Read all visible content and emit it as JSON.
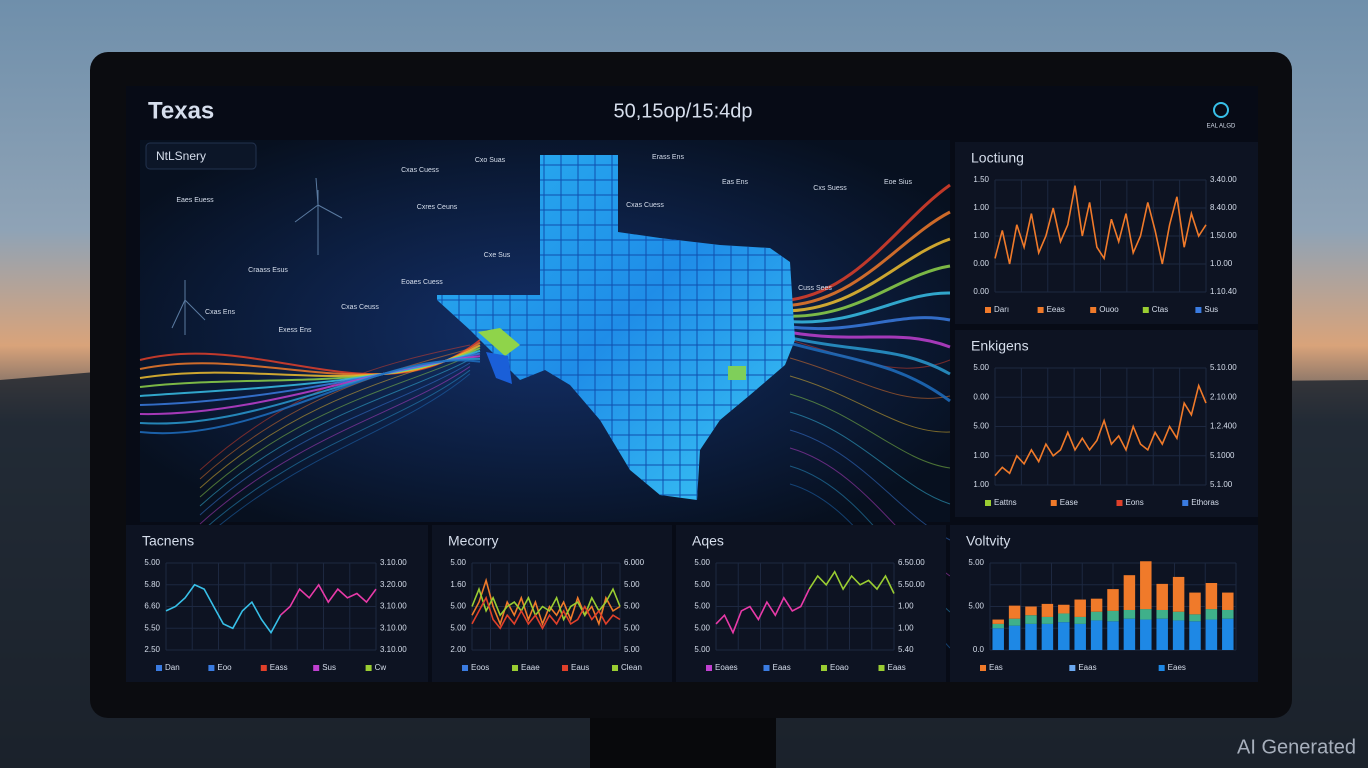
{
  "header": {
    "title": "Texas",
    "center": "50,15op/15:4dp",
    "logo": "EAL ALGD"
  },
  "watermark": "AI Generated",
  "map": {
    "title": "NtLSnery",
    "labels": [
      "Eaes Euess",
      "Cxo Suas",
      "Erass Ens",
      "Cxas Cuess",
      "Eas Ens",
      "Cxs Suess",
      "Eoe Sius",
      "Cxas Cuess",
      "Cxres Ceuns",
      "Craass Esus",
      "Cxe Sus",
      "Cxas Ceuss",
      "Eoaes Cuess",
      "Cxas Ens",
      "Exess Ens",
      "Cuss Sees"
    ]
  },
  "panels": [
    {
      "title": "Loctiung",
      "type": "line",
      "ylim": [
        0,
        1
      ],
      "left_labels": [
        "1.50",
        "1.00",
        "1.00",
        "0.00",
        "0.00"
      ],
      "right_labels": [
        "3.40.00",
        "8.40.00",
        "1.50.00",
        "1.0.00",
        "1.10.40"
      ],
      "legend": [
        {
          "name": "Darı",
          "color": "#f07a2a"
        },
        {
          "name": "Eeas",
          "color": "#f07a2a"
        },
        {
          "name": "Ouoo",
          "color": "#f07a2a"
        },
        {
          "name": "Ctas",
          "color": "#9acd32"
        },
        {
          "name": "Sus",
          "color": "#3a7be0"
        }
      ],
      "series": [
        {
          "color": "#f07a2a",
          "values": [
            0.3,
            0.55,
            0.25,
            0.6,
            0.4,
            0.7,
            0.35,
            0.5,
            0.75,
            0.45,
            0.6,
            0.95,
            0.5,
            0.8,
            0.4,
            0.3,
            0.65,
            0.45,
            0.7,
            0.35,
            0.5,
            0.8,
            0.55,
            0.25,
            0.6,
            0.85,
            0.4,
            0.7,
            0.5,
            0.6
          ]
        }
      ]
    },
    {
      "title": "Enkigens",
      "type": "line",
      "ylim": [
        0,
        1
      ],
      "left_labels": [
        "5.00",
        "0.00",
        "5.00",
        "1.00",
        "1.00"
      ],
      "right_labels": [
        "5.10.00",
        "2.10.00",
        "1.2.400",
        "5.1000",
        "5.1.00"
      ],
      "legend": [
        {
          "name": "Eattns",
          "color": "#9acd32"
        },
        {
          "name": "Ease",
          "color": "#f07a2a"
        },
        {
          "name": "Eons",
          "color": "#e0402a"
        },
        {
          "name": "Ethoras",
          "color": "#3a7be0"
        }
      ],
      "series": [
        {
          "color": "#f07a2a",
          "values": [
            0.08,
            0.15,
            0.1,
            0.25,
            0.18,
            0.3,
            0.2,
            0.35,
            0.25,
            0.3,
            0.45,
            0.3,
            0.4,
            0.3,
            0.38,
            0.55,
            0.35,
            0.42,
            0.3,
            0.5,
            0.35,
            0.3,
            0.45,
            0.35,
            0.5,
            0.4,
            0.7,
            0.6,
            0.85,
            0.7
          ]
        }
      ]
    },
    {
      "title": "Tacnens",
      "type": "line",
      "ylim": [
        0,
        1
      ],
      "left_labels": [
        "5.00",
        "5.80",
        "6.60",
        "5.50",
        "2.50"
      ],
      "right_labels": [
        "3.10.00",
        "3.20.00",
        "3.10.00",
        "3.10.00",
        "3.10.00"
      ],
      "legend": [
        {
          "name": "Dan",
          "color": "#3a7be0"
        },
        {
          "name": "Eoo",
          "color": "#3a7be0"
        },
        {
          "name": "Eass",
          "color": "#e0402a"
        },
        {
          "name": "Sus",
          "color": "#c040d0"
        },
        {
          "name": "Cw",
          "color": "#9acd32"
        }
      ],
      "series": [
        {
          "color": "#38c0e8",
          "values": [
            0.45,
            0.5,
            0.6,
            0.75,
            0.7,
            0.5,
            0.3,
            0.25,
            0.45,
            0.55,
            0.35,
            0.2,
            0.4,
            null,
            null,
            null,
            null,
            null,
            null,
            null,
            null,
            null,
            null
          ]
        },
        {
          "color": "#e83aa8",
          "values": [
            null,
            null,
            null,
            null,
            null,
            null,
            null,
            null,
            null,
            null,
            null,
            null,
            0.4,
            0.5,
            0.7,
            0.6,
            0.75,
            0.55,
            0.7,
            0.6,
            0.65,
            0.55,
            0.7
          ]
        }
      ]
    },
    {
      "title": "Mecorry",
      "type": "line",
      "ylim": [
        0,
        1
      ],
      "left_labels": [
        "5.00",
        "1.60",
        "5.00",
        "5.00",
        "2.00"
      ],
      "right_labels": [
        "6.000",
        "5.00",
        "5.00",
        "5.00",
        "5.00"
      ],
      "legend": [
        {
          "name": "Eoos",
          "color": "#3a7be0"
        },
        {
          "name": "Eaae",
          "color": "#9acd32"
        },
        {
          "name": "Eaus",
          "color": "#e0402a"
        },
        {
          "name": "Clean",
          "color": "#9acd32"
        }
      ],
      "series": [
        {
          "color": "#f07a2a",
          "values": [
            0.4,
            0.55,
            0.8,
            0.5,
            0.3,
            0.55,
            0.4,
            0.6,
            0.35,
            0.55,
            0.3,
            0.5,
            0.4,
            0.55,
            0.35,
            0.6,
            0.4,
            0.5,
            0.3,
            0.6,
            0.45,
            0.5
          ]
        },
        {
          "color": "#9acd32",
          "values": [
            0.5,
            0.7,
            0.45,
            0.6,
            0.4,
            0.5,
            0.55,
            0.45,
            0.6,
            0.4,
            0.5,
            0.45,
            0.6,
            0.35,
            0.5,
            0.55,
            0.4,
            0.6,
            0.45,
            0.55,
            0.7,
            0.5
          ]
        },
        {
          "color": "#e0402a",
          "values": [
            0.3,
            0.45,
            0.6,
            0.35,
            0.25,
            0.4,
            0.3,
            0.45,
            0.3,
            0.4,
            0.25,
            0.4,
            0.3,
            0.45,
            0.3,
            0.35,
            0.5,
            0.35,
            0.45,
            0.3,
            0.4,
            0.35
          ]
        }
      ]
    },
    {
      "title": "Aqes",
      "type": "line",
      "ylim": [
        0,
        1
      ],
      "left_labels": [
        "5.00",
        "5.00",
        "5.00",
        "5.00",
        "5.00"
      ],
      "right_labels": [
        "6.50.00",
        "5.50.00",
        "1.00",
        "1.00",
        "5.40"
      ],
      "legend": [
        {
          "name": "Eoaes",
          "color": "#c040d0"
        },
        {
          "name": "Eaas",
          "color": "#3a7be0"
        },
        {
          "name": "Eoao",
          "color": "#9acd32"
        },
        {
          "name": "Eaas",
          "color": "#9acd32"
        }
      ],
      "series": [
        {
          "color": "#e83aa8",
          "values": [
            0.3,
            0.4,
            0.2,
            0.45,
            0.5,
            0.35,
            0.55,
            0.4,
            0.6,
            0.45,
            0.5,
            0.7,
            null,
            null,
            null,
            null,
            null,
            null,
            null,
            null,
            null,
            null
          ]
        },
        {
          "color": "#9acd32",
          "values": [
            null,
            null,
            null,
            null,
            null,
            null,
            null,
            null,
            null,
            null,
            null,
            0.7,
            0.85,
            0.75,
            0.9,
            0.7,
            0.85,
            0.75,
            0.8,
            0.7,
            0.85,
            0.65
          ]
        }
      ]
    },
    {
      "title": "Voltvity",
      "type": "bar",
      "ylim": [
        0,
        1
      ],
      "left_labels": [
        "5.00",
        "5.00",
        "0.0"
      ],
      "right_labels": [],
      "legend": [
        {
          "name": "Eas",
          "color": "#f07a2a"
        },
        {
          "name": "Eaas",
          "color": "#6aa8f0"
        },
        {
          "name": "Eaes",
          "color": "#1e88e5"
        }
      ],
      "series": [
        {
          "color": "#1e88e5",
          "values": [
            0.25,
            0.28,
            0.3,
            0.3,
            0.32,
            0.3,
            0.34,
            0.33,
            0.36,
            0.35,
            0.36,
            0.34,
            0.33,
            0.35,
            0.36
          ]
        },
        {
          "color": "#3fb08a",
          "values": [
            0.05,
            0.08,
            0.1,
            0.08,
            0.1,
            0.08,
            0.1,
            0.12,
            0.1,
            0.12,
            0.1,
            0.1,
            0.08,
            0.12,
            0.1
          ]
        },
        {
          "color": "#f07a2a",
          "values": [
            0.05,
            0.15,
            0.1,
            0.15,
            0.1,
            0.2,
            0.15,
            0.25,
            0.4,
            0.55,
            0.3,
            0.4,
            0.25,
            0.3,
            0.2
          ]
        }
      ]
    }
  ]
}
